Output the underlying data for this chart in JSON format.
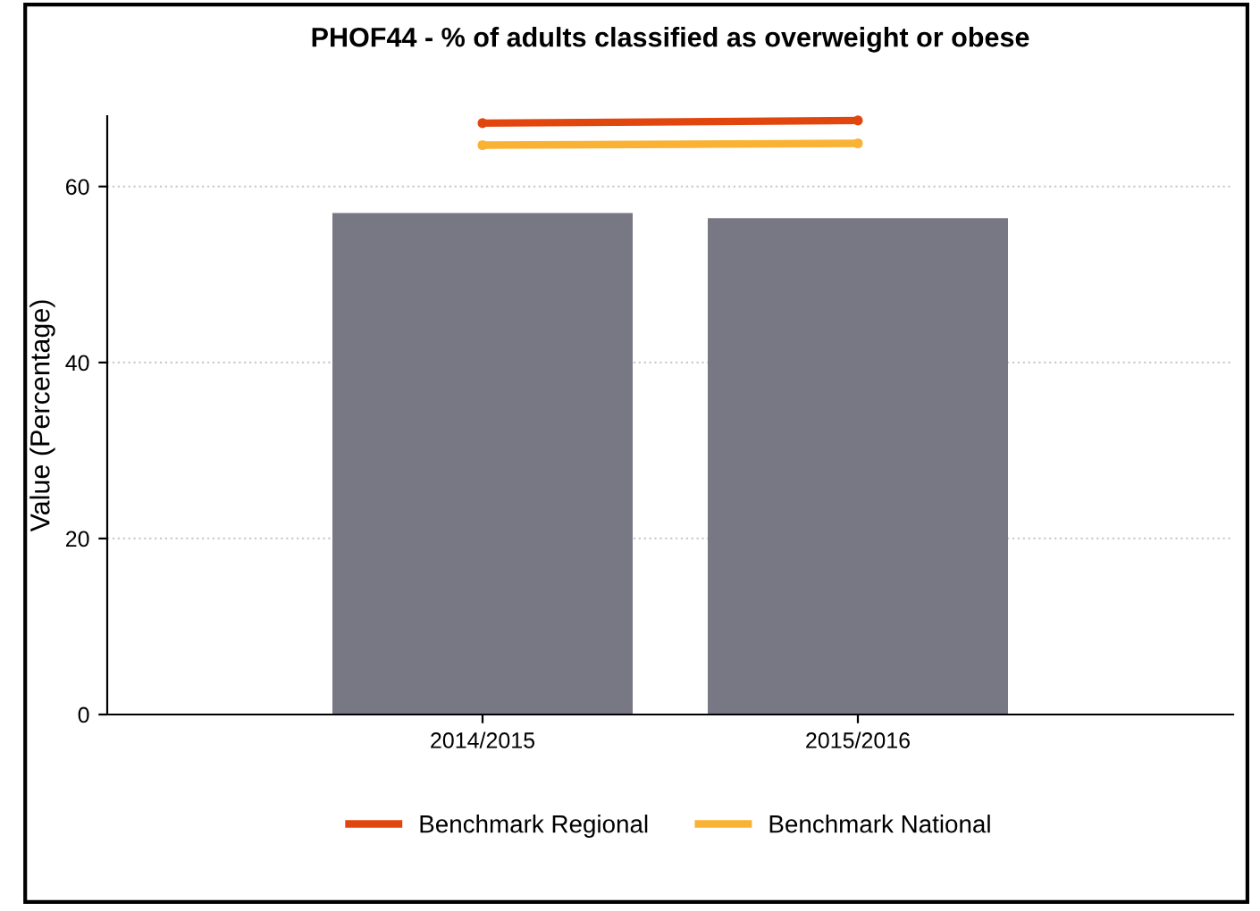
{
  "chart_data": {
    "type": "bar",
    "title": "PHOF44 - % of adults classified as overweight or obese",
    "ylabel": "Value (Percentage)",
    "categories": [
      "2014/2015",
      "2015/2016"
    ],
    "series": [
      {
        "color": "#787784",
        "values": [
          57.0,
          56.4
        ]
      },
      {
        "type": "line",
        "name": "Benchmark Regional",
        "color": "#e0460e",
        "values": [
          67.2,
          67.5
        ]
      },
      {
        "type": "line",
        "name": "Benchmark National",
        "color": "#f9b233",
        "values": [
          64.7,
          64.9
        ]
      }
    ],
    "ylim": [
      0,
      68
    ],
    "yticks": [
      0,
      20,
      40,
      60
    ],
    "grid": "y",
    "legend": "bottom",
    "marker": "circle",
    "line_style": "solid"
  }
}
